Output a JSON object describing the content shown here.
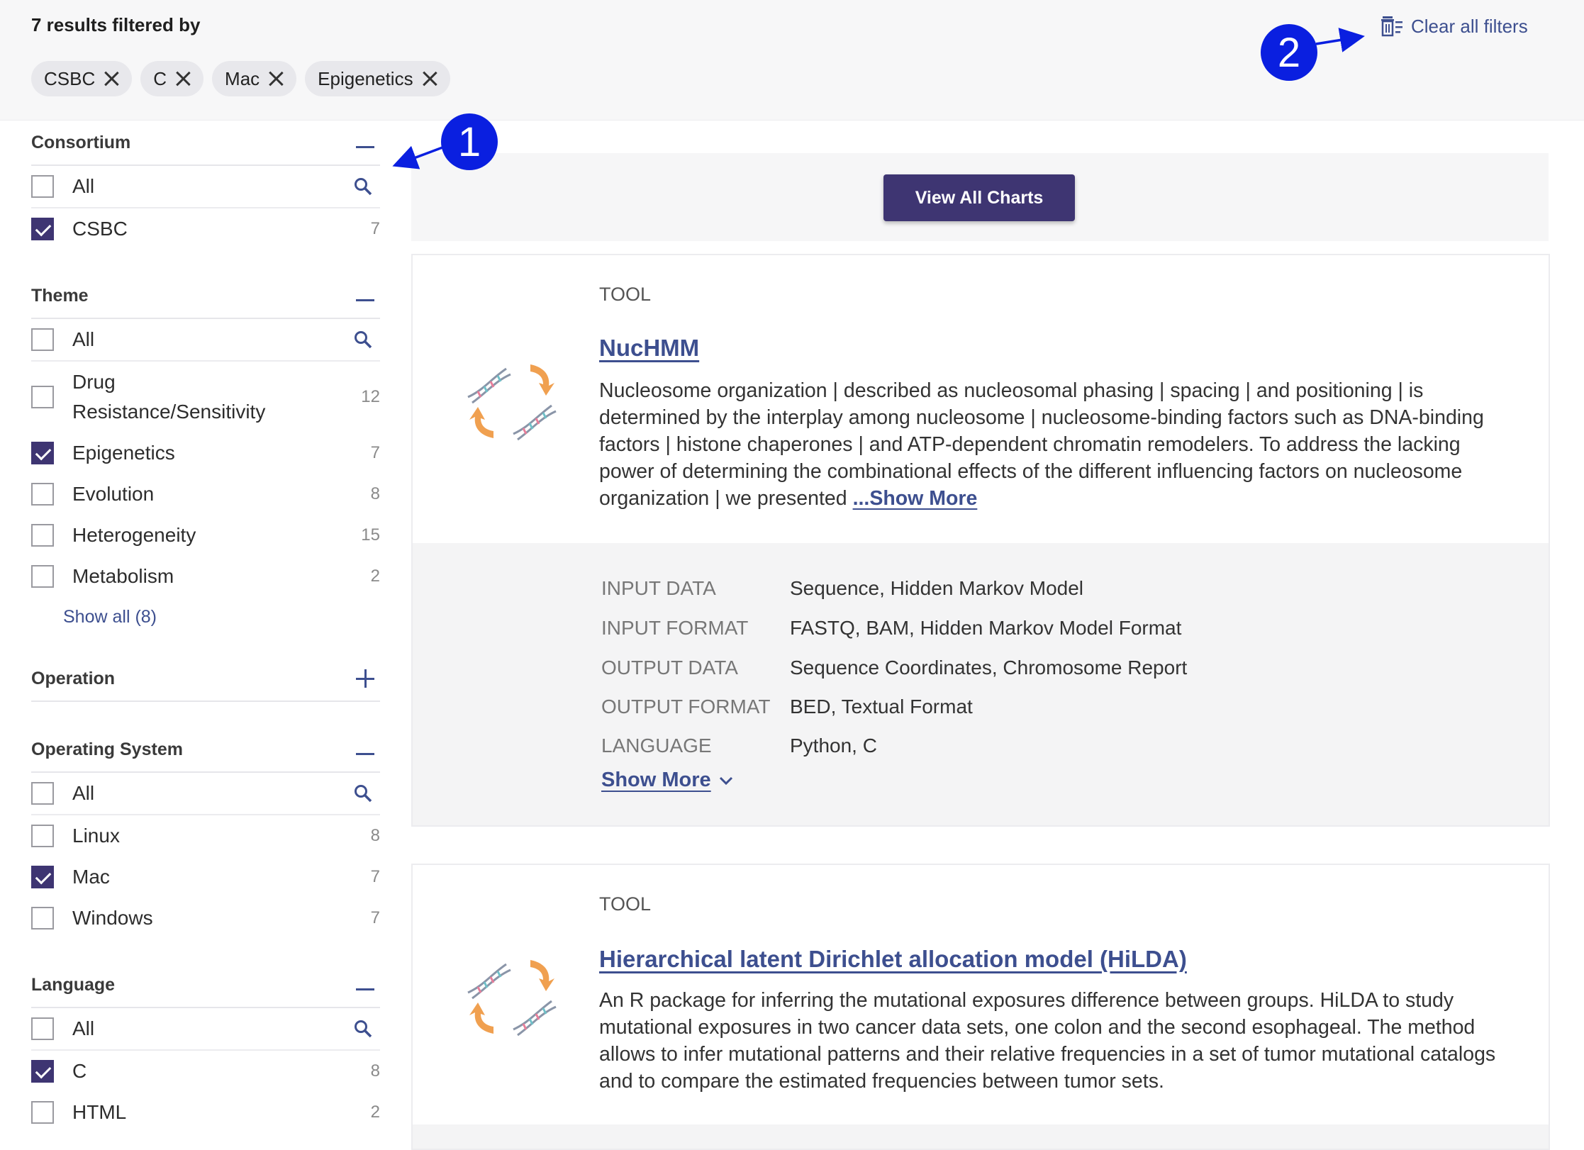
{
  "header": {
    "results_text": "7 results filtered by",
    "chips": [
      "CSBC",
      "C",
      "Mac",
      "Epigenetics"
    ],
    "clear_filters": "Clear all filters"
  },
  "sidebar": {
    "consortium": {
      "title": "Consortium",
      "all_label": "All",
      "options": [
        {
          "label": "CSBC",
          "count": "7",
          "checked": true
        }
      ]
    },
    "theme": {
      "title": "Theme",
      "all_label": "All",
      "options": [
        {
          "label": "Drug Resistance/Sensitivity",
          "count": "12",
          "checked": false
        },
        {
          "label": "Epigenetics",
          "count": "7",
          "checked": true
        },
        {
          "label": "Evolution",
          "count": "8",
          "checked": false
        },
        {
          "label": "Heterogeneity",
          "count": "15",
          "checked": false
        },
        {
          "label": "Metabolism",
          "count": "2",
          "checked": false
        }
      ],
      "show_all": "Show all (8)"
    },
    "operation": {
      "title": "Operation"
    },
    "operating_system": {
      "title": "Operating System",
      "all_label": "All",
      "options": [
        {
          "label": "Linux",
          "count": "8",
          "checked": false
        },
        {
          "label": "Mac",
          "count": "7",
          "checked": true
        },
        {
          "label": "Windows",
          "count": "7",
          "checked": false
        }
      ]
    },
    "language": {
      "title": "Language",
      "all_label": "All",
      "options": [
        {
          "label": "C",
          "count": "8",
          "checked": true
        },
        {
          "label": "HTML",
          "count": "2",
          "checked": false
        }
      ]
    }
  },
  "main": {
    "view_all_charts": "View All Charts",
    "cards": [
      {
        "type": "TOOL",
        "title": "NucHMM",
        "description": "Nucleosome organization | described as nucleosomal phasing | spacing | and positioning | is determined by the interplay among nucleosome | nucleosome-binding factors such as DNA-binding factors | histone chaperones | and ATP-dependent chromatin remodelers. To address the lacking power of determining the combinational effects of the different influencing factors on nucleosome organization | we presented",
        "show_more_inline": "...Show More",
        "meta": [
          {
            "key": "INPUT DATA",
            "value": "Sequence, Hidden Markov Model"
          },
          {
            "key": "INPUT FORMAT",
            "value": "FASTQ, BAM, Hidden Markov Model Format"
          },
          {
            "key": "OUTPUT DATA",
            "value": "Sequence Coordinates, Chromosome Report"
          },
          {
            "key": "OUTPUT FORMAT",
            "value": "BED, Textual Format"
          },
          {
            "key": "LANGUAGE",
            "value": "Python, C"
          }
        ],
        "show_more": "Show More"
      },
      {
        "type": "TOOL",
        "title": "Hierarchical latent Dirichlet allocation model (HiLDA)",
        "description": "An R package for inferring the mutational exposures difference between groups. HiLDA to study mutational exposures in two cancer data sets, one colon and the second esophageal. The method allows to infer mutational patterns and their relative frequencies in a set of tumor mutational catalogs and to compare the estimated frequencies between tumor sets."
      }
    ]
  },
  "annotations": {
    "badge_1": "1",
    "badge_2": "2"
  },
  "colors": {
    "primary": "#3e3572",
    "link": "#3d4f8f",
    "annotation": "#0a1fe0"
  }
}
